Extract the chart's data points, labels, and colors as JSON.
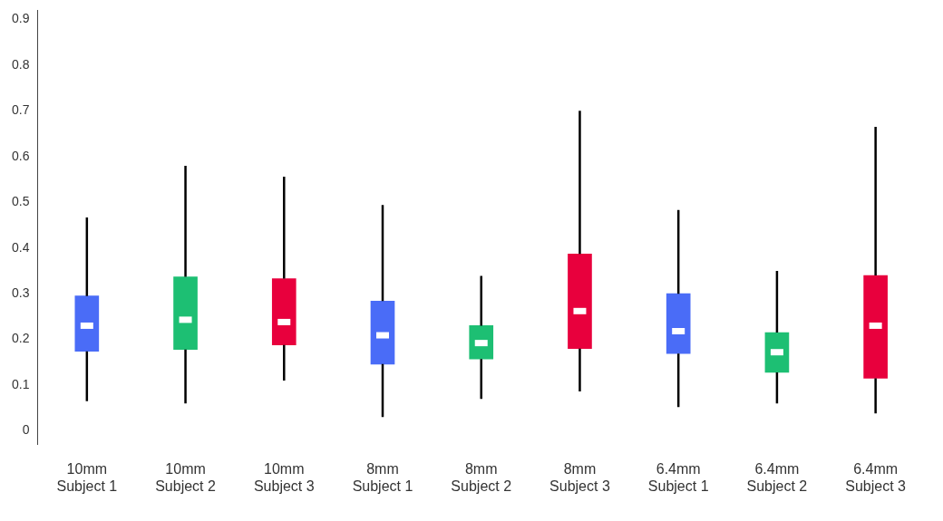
{
  "chart_data": {
    "type": "box",
    "categories": [
      "10mm\nSubject 1",
      "10mm\nSubject 2",
      "10mm\nSubject 3",
      "8mm\nSubject 1",
      "8mm\nSubject 2",
      "8mm\nSubject 3",
      "6.4mm\nSubject 1",
      "6.4mm\nSubject 2",
      "6.4mm\nSubject 3"
    ],
    "colors": [
      "#4a6cf7",
      "#1dbf73",
      "#e8003d",
      "#4a6cf7",
      "#1dbf73",
      "#e8003d",
      "#4a6cf7",
      "#1dbf73",
      "#e8003d"
    ],
    "boxes": [
      {
        "low": 0.065,
        "q1": 0.174,
        "median": 0.23,
        "q3": 0.295,
        "high": 0.467
      },
      {
        "low": 0.06,
        "q1": 0.178,
        "median": 0.243,
        "q3": 0.337,
        "high": 0.58
      },
      {
        "low": 0.11,
        "q1": 0.188,
        "median": 0.238,
        "q3": 0.333,
        "high": 0.556
      },
      {
        "low": 0.03,
        "q1": 0.146,
        "median": 0.209,
        "q3": 0.284,
        "high": 0.494
      },
      {
        "low": 0.07,
        "q1": 0.157,
        "median": 0.192,
        "q3": 0.23,
        "high": 0.339
      },
      {
        "low": 0.086,
        "q1": 0.18,
        "median": 0.262,
        "q3": 0.387,
        "high": 0.7
      },
      {
        "low": 0.052,
        "q1": 0.169,
        "median": 0.218,
        "q3": 0.3,
        "high": 0.483
      },
      {
        "low": 0.06,
        "q1": 0.128,
        "median": 0.172,
        "q3": 0.215,
        "high": 0.35
      },
      {
        "low": 0.038,
        "q1": 0.115,
        "median": 0.23,
        "q3": 0.34,
        "high": 0.665
      }
    ],
    "ylim": [
      -0.03,
      0.92
    ],
    "yticks": [
      0,
      0.1,
      0.2,
      0.3,
      0.4,
      0.5,
      0.6,
      0.7,
      0.8,
      0.9
    ],
    "grid": false,
    "legend": false
  }
}
